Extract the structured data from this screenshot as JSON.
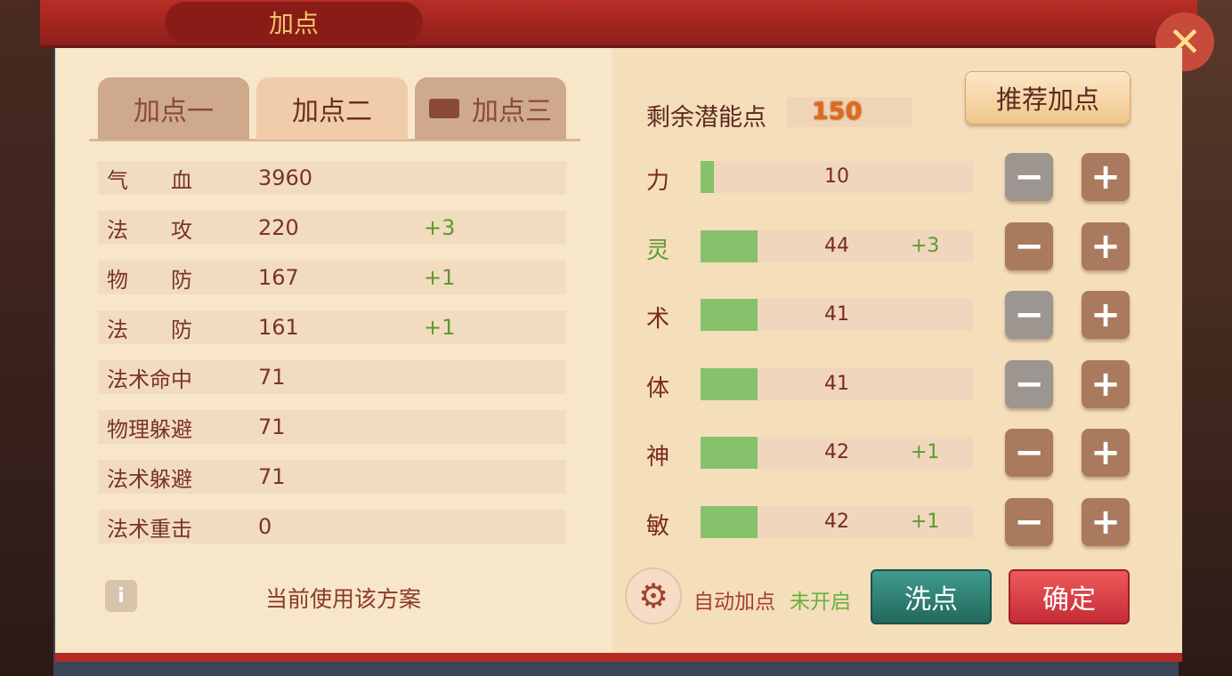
{
  "title": "加点",
  "tabs": [
    {
      "label": "加点一",
      "active": false
    },
    {
      "label": "加点二",
      "active": true
    },
    {
      "label": "加点三",
      "active": false,
      "icon": "chest-icon"
    }
  ],
  "stats": [
    {
      "name": "气　　血",
      "value": "3960",
      "bonus": ""
    },
    {
      "name": "法　　攻",
      "value": "220",
      "bonus": "+3"
    },
    {
      "name": "物　　防",
      "value": "167",
      "bonus": "+1"
    },
    {
      "name": "法　　防",
      "value": "161",
      "bonus": "+1"
    },
    {
      "name": "法术命中",
      "value": "71",
      "bonus": ""
    },
    {
      "name": "物理躲避",
      "value": "71",
      "bonus": ""
    },
    {
      "name": "法术躲避",
      "value": "71",
      "bonus": ""
    },
    {
      "name": "法术重击",
      "value": "0",
      "bonus": ""
    }
  ],
  "info_icon": "info-icon",
  "current_scheme": "当前使用该方案",
  "remaining_label": "剩余潜能点",
  "remaining_value": "150",
  "recommend_label": "推荐加点",
  "attributes": [
    {
      "name": "力",
      "value": "10",
      "bonus": "",
      "fill": 0.05,
      "minus_enabled": false,
      "highlight": false
    },
    {
      "name": "灵",
      "value": "44",
      "bonus": "+3",
      "fill": 0.21,
      "minus_enabled": true,
      "highlight": true
    },
    {
      "name": "术",
      "value": "41",
      "bonus": "",
      "fill": 0.21,
      "minus_enabled": false,
      "highlight": false
    },
    {
      "name": "体",
      "value": "41",
      "bonus": "",
      "fill": 0.21,
      "minus_enabled": false,
      "highlight": false
    },
    {
      "name": "神",
      "value": "42",
      "bonus": "+1",
      "fill": 0.21,
      "minus_enabled": true,
      "highlight": false
    },
    {
      "name": "敏",
      "value": "42",
      "bonus": "+1",
      "fill": 0.21,
      "minus_enabled": true,
      "highlight": false
    }
  ],
  "auto_label": "自动加点",
  "auto_status": "未开启",
  "reset_label": "洗点",
  "confirm_label": "确定",
  "minus_symbol": "−",
  "plus_symbol": "+",
  "close_symbol": "✕",
  "colors": {
    "accent_red": "#b82e26",
    "bar_fill": "#86c16c",
    "bonus_green": "#5d9a30"
  }
}
